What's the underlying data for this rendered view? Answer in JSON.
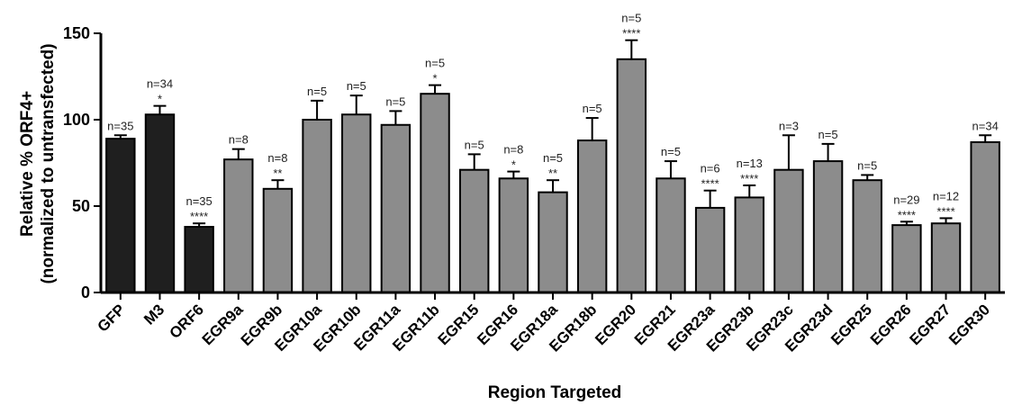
{
  "chart_data": {
    "type": "bar",
    "title": "",
    "xlabel": "Region Targeted",
    "ylabel_line1": "Relative % ORF4+",
    "ylabel_line2": "(normalized to untransfected)",
    "ylim": [
      0,
      150
    ],
    "yticks": [
      0,
      50,
      100,
      150
    ],
    "grid": false,
    "legend": "none",
    "colors": {
      "control": "#1f1f1f",
      "target": "#8c8c8c"
    },
    "categories": [
      "GFP",
      "M3",
      "ORF6",
      "EGR9a",
      "EGR9b",
      "EGR10a",
      "EGR10b",
      "EGR11a",
      "EGR11b",
      "EGR15",
      "EGR16",
      "EGR18a",
      "EGR18b",
      "EGR20",
      "EGR21",
      "EGR23a",
      "EGR23b",
      "EGR23c",
      "EGR23d",
      "EGR25",
      "EGR26",
      "EGR27",
      "EGR30"
    ],
    "values": [
      89,
      103,
      38,
      77,
      60,
      100,
      103,
      97,
      115,
      71,
      66,
      58,
      88,
      135,
      66,
      49,
      55,
      71,
      76,
      65,
      39,
      40,
      87
    ],
    "error": [
      2,
      5,
      2,
      6,
      5,
      11,
      11,
      8,
      5,
      9,
      4,
      7,
      13,
      11,
      10,
      10,
      7,
      20,
      10,
      3,
      2,
      3,
      4
    ],
    "n_labels": [
      "n=35",
      "n=34",
      "n=35",
      "n=8",
      "n=8",
      "n=5",
      "n=5",
      "n=5",
      "n=5",
      "n=5",
      "n=8",
      "n=5",
      "n=5",
      "n=5",
      "n=5",
      "n=6",
      "n=13",
      "n=3",
      "n=5",
      "n=5",
      "n=29",
      "n=12",
      "n=34"
    ],
    "significance": [
      "",
      "*",
      "****",
      "",
      "**",
      "",
      "",
      "",
      "*",
      "",
      "*",
      "**",
      "",
      "****",
      "",
      "****",
      "****",
      "",
      "",
      "",
      "****",
      "****",
      ""
    ],
    "bar_group": [
      "control",
      "control",
      "control",
      "target",
      "target",
      "target",
      "target",
      "target",
      "target",
      "target",
      "target",
      "target",
      "target",
      "target",
      "target",
      "target",
      "target",
      "target",
      "target",
      "target",
      "target",
      "target",
      "target"
    ]
  }
}
